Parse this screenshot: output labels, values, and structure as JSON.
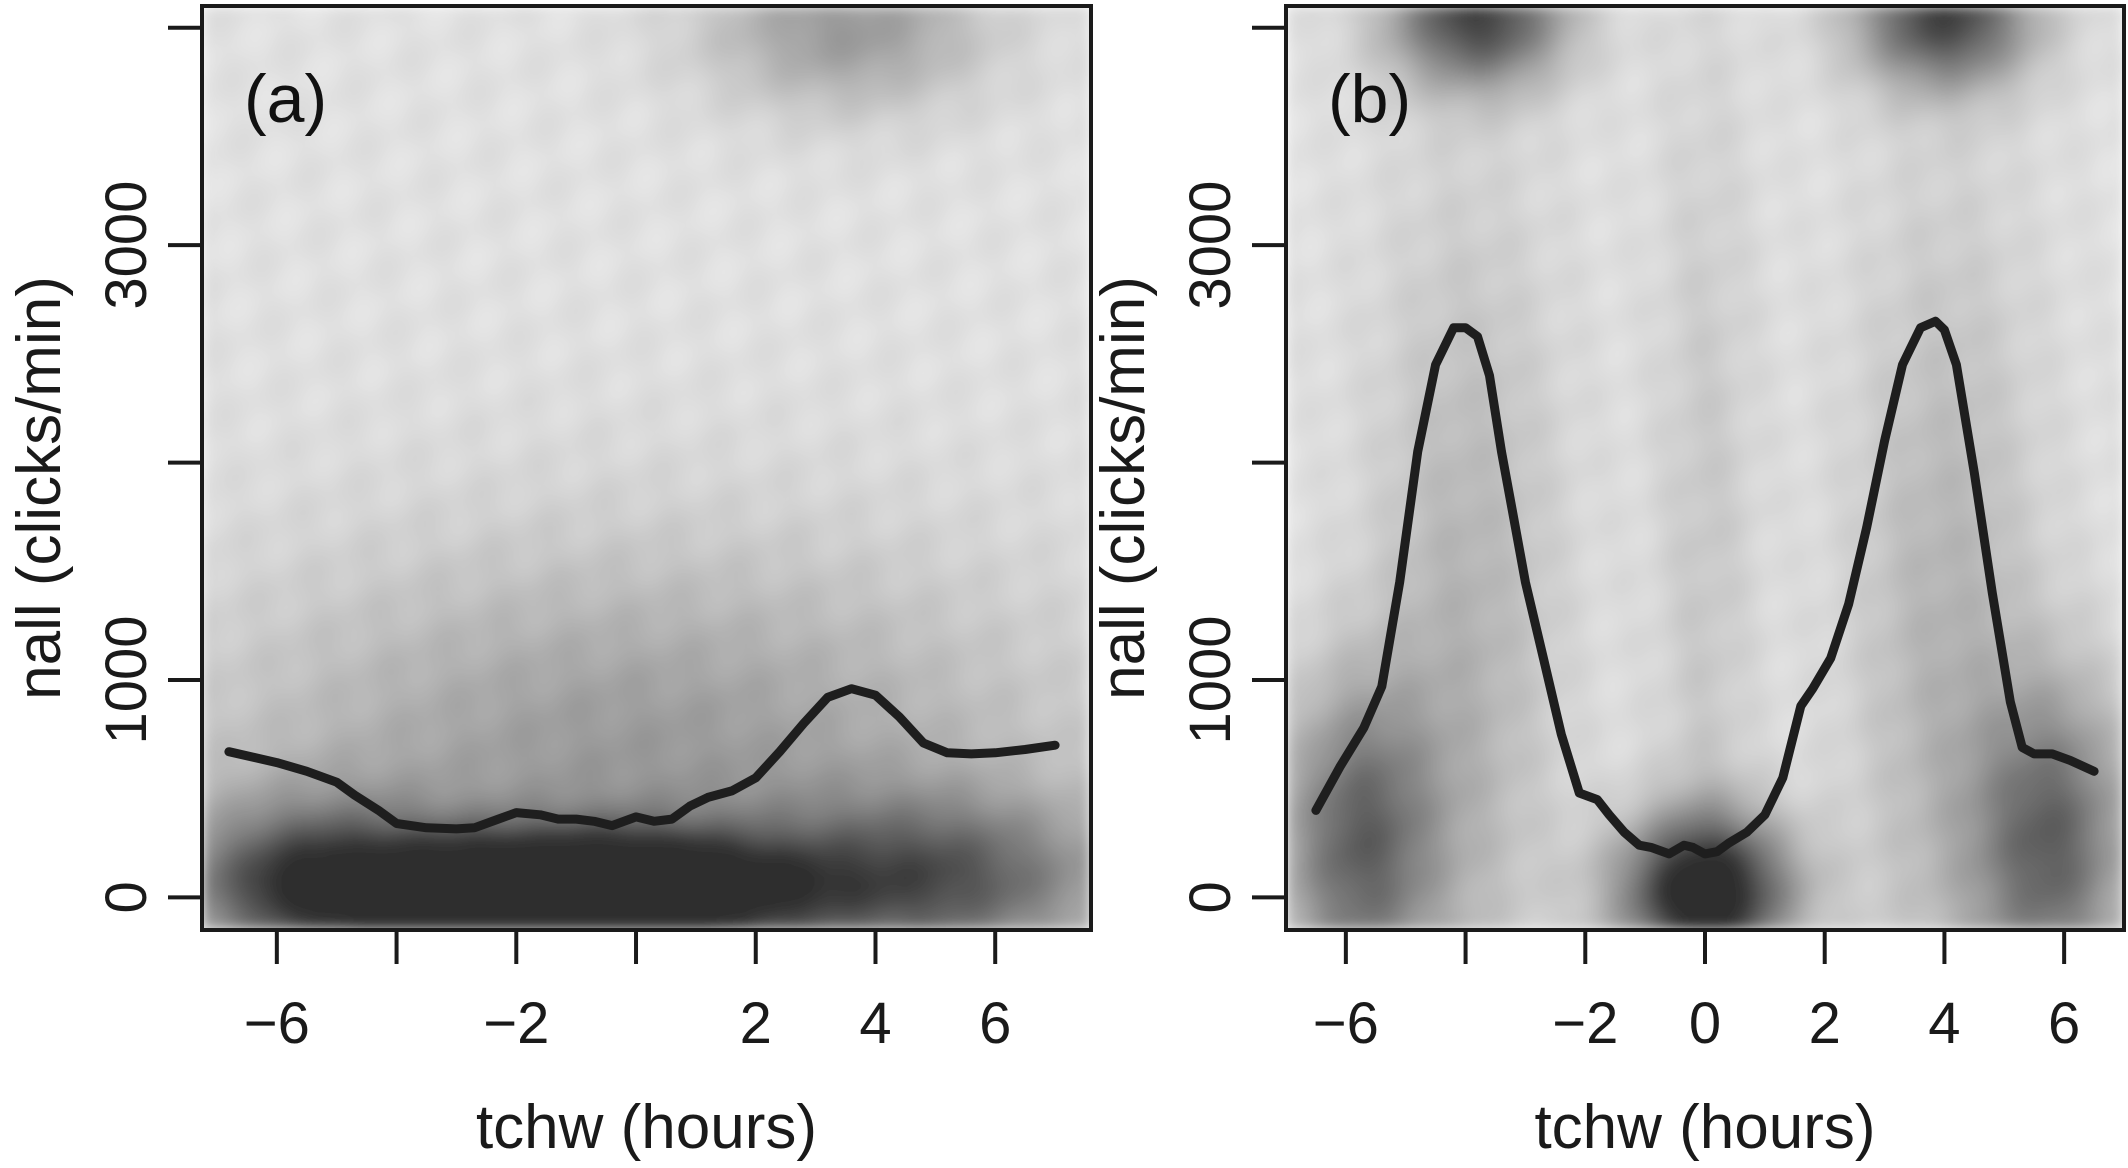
{
  "chart_data": [
    {
      "type": "heatmap",
      "panel_label": "(a)",
      "xlabel": "tchw (hours)",
      "ylabel": "nall (clicks/min)",
      "xlim": [
        -7.25,
        7.6
      ],
      "ylim": [
        -150,
        4100
      ],
      "x_ticks": [
        -6,
        -4,
        -2,
        0,
        2,
        4,
        6
      ],
      "x_tick_labels": [
        "−6",
        "",
        "−2",
        "",
        "2",
        "4",
        "6"
      ],
      "y_ticks": [
        0,
        1000,
        2000,
        3000,
        4000
      ],
      "y_tick_labels": [
        "0",
        "1000",
        "",
        "3000",
        ""
      ],
      "density_hotspots": [
        {
          "x": -2.5,
          "y": 30,
          "weight": 0.85,
          "sx": 2.2,
          "sy": 170
        },
        {
          "x": 0.0,
          "y": 40,
          "weight": 0.95,
          "sx": 2.0,
          "sy": 170
        },
        {
          "x": -5.5,
          "y": 80,
          "weight": 0.55,
          "sx": 1.5,
          "sy": 260
        },
        {
          "x": 5.0,
          "y": 80,
          "weight": 0.55,
          "sx": 2.0,
          "sy": 260
        },
        {
          "x": 0.0,
          "y": 600,
          "weight": 0.35,
          "sx": 5.0,
          "sy": 700
        },
        {
          "x": 3.5,
          "y": 4000,
          "weight": 0.35,
          "sx": 1.6,
          "sy": 260
        }
      ],
      "series": [
        {
          "x": [
            -6.8,
            -6.0,
            -5.5,
            -5.0,
            -4.7,
            -4.3,
            -4.0,
            -3.5,
            -3.0,
            -2.7,
            -2.3,
            -2.0,
            -1.6,
            -1.3,
            -1.0,
            -0.7,
            -0.4,
            0.0,
            0.3,
            0.6,
            0.9,
            1.2,
            1.6,
            2.0,
            2.4,
            2.8,
            3.2,
            3.6,
            4.0,
            4.4,
            4.8,
            5.2,
            5.6,
            6.0,
            6.5,
            7.0
          ],
          "y": [
            670,
            620,
            580,
            530,
            470,
            400,
            340,
            320,
            315,
            320,
            360,
            390,
            380,
            360,
            360,
            350,
            330,
            370,
            350,
            360,
            420,
            460,
            490,
            550,
            670,
            800,
            920,
            960,
            930,
            830,
            710,
            665,
            660,
            665,
            680,
            700
          ]
        }
      ]
    },
    {
      "type": "heatmap",
      "panel_label": "(b)",
      "xlabel": "tchw (hours)",
      "ylabel": "nall (clicks/min)",
      "xlim": [
        -7.0,
        7.0
      ],
      "ylim": [
        -150,
        4100
      ],
      "x_ticks": [
        -6,
        -4,
        -2,
        0,
        2,
        4,
        6
      ],
      "x_tick_labels": [
        "−6",
        "",
        "−2",
        "0",
        "2",
        "4",
        "6"
      ],
      "y_ticks": [
        0,
        1000,
        2000,
        3000,
        4000
      ],
      "y_tick_labels": [
        "0",
        "1000",
        "",
        "3000",
        ""
      ],
      "density_hotspots": [
        {
          "x": 0.0,
          "y": 30,
          "weight": 1.0,
          "sx": 1.0,
          "sy": 240
        },
        {
          "x": -3.8,
          "y": 4050,
          "weight": 0.75,
          "sx": 1.0,
          "sy": 220
        },
        {
          "x": 4.0,
          "y": 4050,
          "weight": 0.75,
          "sx": 1.0,
          "sy": 220
        },
        {
          "x": -5.8,
          "y": 250,
          "weight": 0.6,
          "sx": 0.9,
          "sy": 500
        },
        {
          "x": 5.8,
          "y": 250,
          "weight": 0.6,
          "sx": 0.9,
          "sy": 500
        },
        {
          "x": -4.0,
          "y": 1200,
          "weight": 0.22,
          "sx": 1.1,
          "sy": 1400
        },
        {
          "x": 4.0,
          "y": 1200,
          "weight": 0.22,
          "sx": 1.1,
          "sy": 1400
        },
        {
          "x": 0.0,
          "y": 1500,
          "weight": 0.12,
          "sx": 0.6,
          "sy": 1800
        }
      ],
      "series": [
        {
          "x": [
            -6.5,
            -6.1,
            -5.7,
            -5.4,
            -5.1,
            -4.8,
            -4.5,
            -4.2,
            -4.0,
            -3.8,
            -3.6,
            -3.4,
            -3.2,
            -3.0,
            -2.7,
            -2.4,
            -2.1,
            -1.8,
            -1.6,
            -1.35,
            -1.1,
            -0.9,
            -0.6,
            -0.35,
            -0.2,
            0.0,
            0.2,
            0.4,
            0.7,
            1.0,
            1.3,
            1.6,
            1.8,
            2.1,
            2.4,
            2.7,
            3.0,
            3.3,
            3.6,
            3.85,
            4.0,
            4.2,
            4.5,
            4.8,
            5.1,
            5.3,
            5.5,
            5.8,
            6.1,
            6.5
          ],
          "y": [
            400,
            600,
            780,
            970,
            1450,
            2050,
            2450,
            2620,
            2620,
            2580,
            2400,
            2050,
            1750,
            1450,
            1100,
            750,
            480,
            450,
            380,
            300,
            240,
            230,
            200,
            240,
            230,
            200,
            210,
            250,
            300,
            380,
            550,
            880,
            960,
            1100,
            1350,
            1700,
            2100,
            2450,
            2620,
            2650,
            2610,
            2450,
            1950,
            1400,
            900,
            690,
            660,
            660,
            630,
            580
          ]
        }
      ]
    }
  ]
}
